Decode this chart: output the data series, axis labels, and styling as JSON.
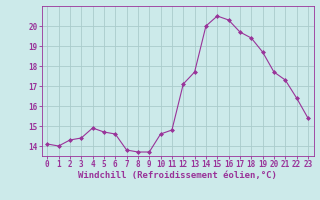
{
  "x": [
    0,
    1,
    2,
    3,
    4,
    5,
    6,
    7,
    8,
    9,
    10,
    11,
    12,
    13,
    14,
    15,
    16,
    17,
    18,
    19,
    20,
    21,
    22,
    23
  ],
  "y": [
    14.1,
    14.0,
    14.3,
    14.4,
    14.9,
    14.7,
    14.6,
    13.8,
    13.7,
    13.7,
    14.6,
    14.8,
    17.1,
    17.7,
    20.0,
    20.5,
    20.3,
    19.7,
    19.4,
    18.7,
    17.7,
    17.3,
    16.4,
    15.4
  ],
  "line_color": "#993399",
  "marker": "D",
  "marker_size": 2,
  "bg_color": "#cceaea",
  "grid_color": "#aacccc",
  "xlabel": "Windchill (Refroidissement éolien,°C)",
  "ylim": [
    13.5,
    21.0
  ],
  "xlim": [
    -0.5,
    23.5
  ],
  "yticks": [
    14,
    15,
    16,
    17,
    18,
    19,
    20
  ],
  "xticks": [
    0,
    1,
    2,
    3,
    4,
    5,
    6,
    7,
    8,
    9,
    10,
    11,
    12,
    13,
    14,
    15,
    16,
    17,
    18,
    19,
    20,
    21,
    22,
    23
  ],
  "tick_color": "#993399",
  "tick_fontsize": 5.5,
  "xlabel_fontsize": 6.5,
  "axis_label_color": "#993399",
  "spine_color": "#993399"
}
